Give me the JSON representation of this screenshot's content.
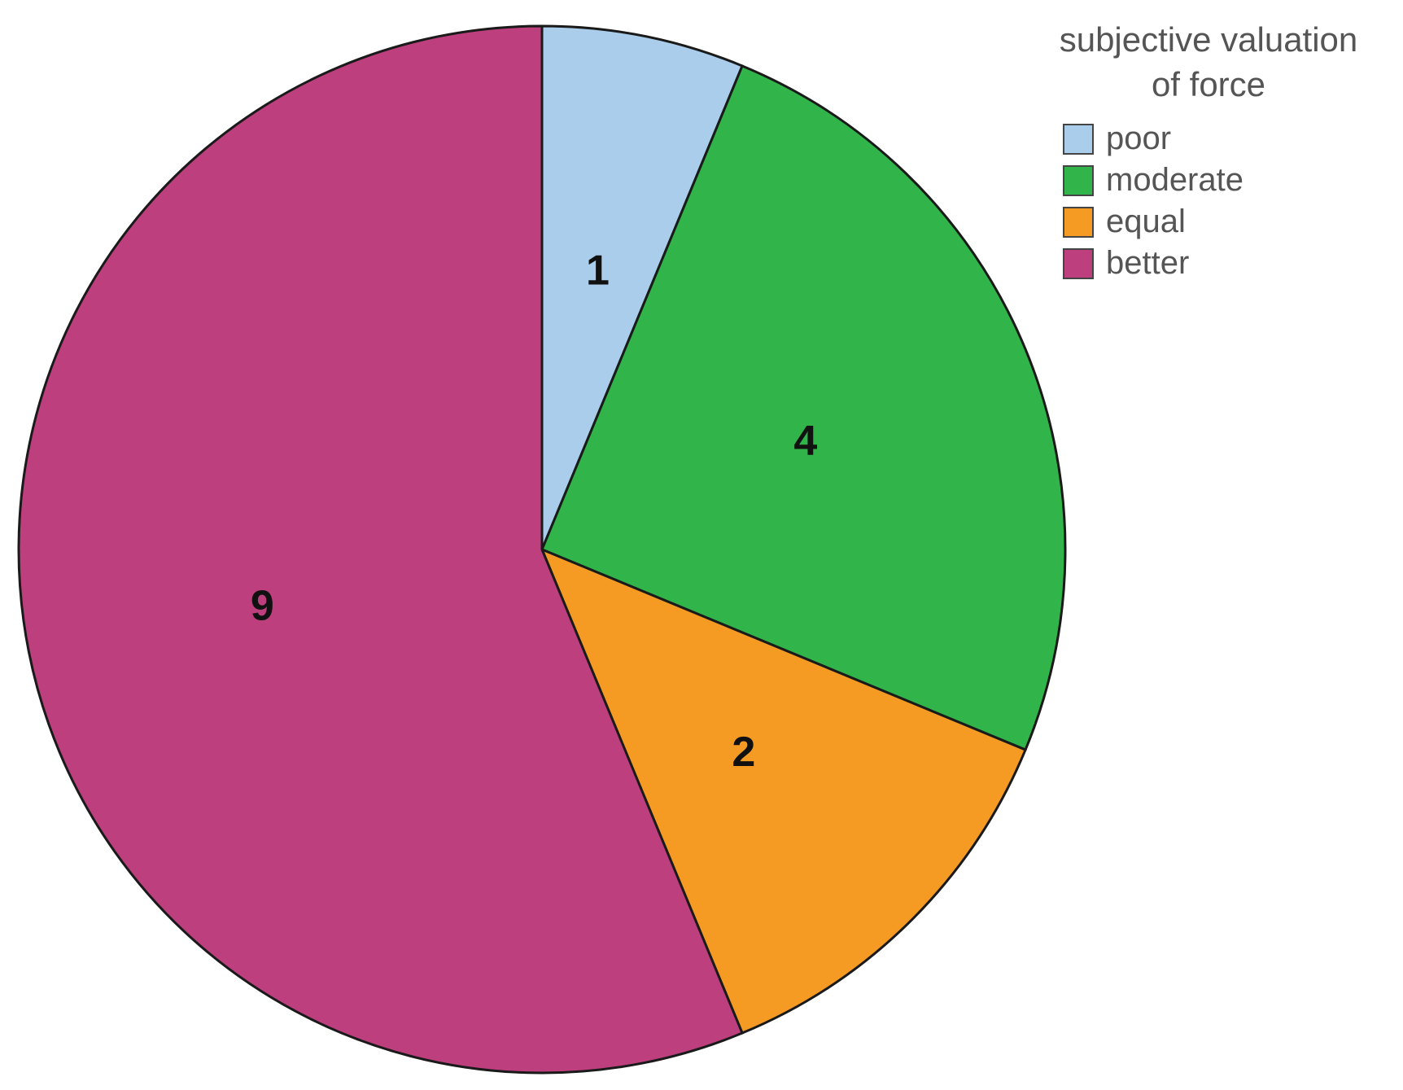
{
  "chart_data": {
    "type": "pie",
    "categories": [
      "poor",
      "moderate",
      "equal",
      "better"
    ],
    "values": [
      1,
      4,
      2,
      9
    ],
    "data_labels": [
      "1",
      "4",
      "2",
      "9"
    ],
    "colors": [
      "#a9cdeb",
      "#31b54a",
      "#f59a23",
      "#bd3f7e"
    ],
    "start_angle": "12 o'clock",
    "direction": "clockwise",
    "legend": {
      "title_lines": [
        "subjective valuation",
        "of force"
      ],
      "placement": "top-right"
    }
  }
}
